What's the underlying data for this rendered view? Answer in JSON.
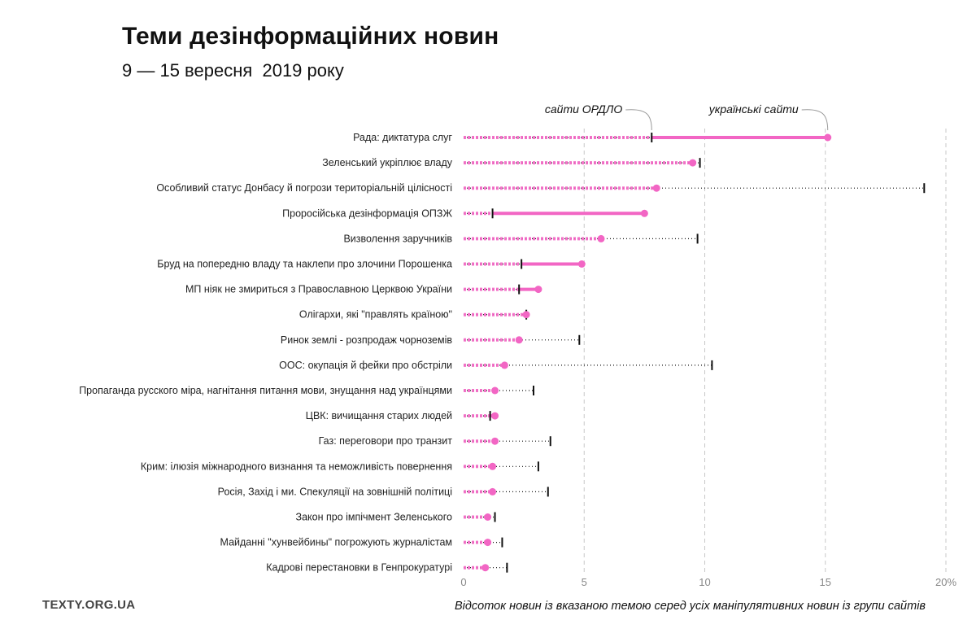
{
  "title": "Теми дезінформаційних новин",
  "subtitle": "9 — 15 вересня  2019 року",
  "brand": "TEXTY.ORG.UA",
  "footnote": "Відсоток новин із вказаною темою серед усіх маніпулятивних новин із групи сайтів",
  "colors": {
    "ukrainian": "#f266c4",
    "ordlo": "#111111",
    "grid": "#c8c8c8"
  },
  "chart_data": {
    "type": "dumbbell",
    "x_ticks": [
      "0",
      "5",
      "10",
      "15",
      "20%"
    ],
    "xlim": [
      0,
      20
    ],
    "grid": true,
    "annotations": [
      {
        "text": "сайти ОРДЛО",
        "series": "ordlo",
        "category_index": 0
      },
      {
        "text": "українські сайти",
        "series": "ukrainian",
        "category_index": 0
      }
    ],
    "categories": [
      "Рада: диктатура слуг",
      "Зеленський укріплює владу",
      "Особливий статус Донбасу й погрози територіальній цілісності",
      "Проросійська дезінформація ОПЗЖ",
      "Визволення заручників",
      "Бруд на попередню владу та наклепи про злочини Порошенка",
      "МП ніяк не змириться з Православною Церквою України",
      "Олігархи, які \"правлять країною\"",
      "Ринок землі - розпродаж чорноземів",
      "ООС: окупація й фейки про обстріли",
      "Пропаганда русского міра, нагнітання питання мови, знущання над українцями",
      "ЦВК: вичищання старих людей",
      "Газ: переговори про транзит",
      "Крим: ілюзія міжнародного визнання та неможливість повернення",
      "Росія, Захід і ми. Спекуляції на зовнішній політиці",
      "Закон про імпічмент Зеленського",
      "Майданні \"хунвейбины\" погрожують журналістам",
      "Кадрові перестановки в Генпрокуратурі"
    ],
    "series": [
      {
        "key": "ukrainian",
        "values": [
          15.1,
          9.5,
          8.0,
          7.5,
          5.7,
          4.9,
          3.1,
          2.6,
          2.3,
          1.7,
          1.3,
          1.3,
          1.3,
          1.2,
          1.2,
          1.0,
          1.0,
          0.9
        ]
      },
      {
        "key": "ordlo",
        "values": [
          7.8,
          9.8,
          19.1,
          1.2,
          9.7,
          2.4,
          2.3,
          2.6,
          4.8,
          10.3,
          2.9,
          1.1,
          3.6,
          3.1,
          3.5,
          1.3,
          1.6,
          1.8
        ]
      }
    ]
  }
}
